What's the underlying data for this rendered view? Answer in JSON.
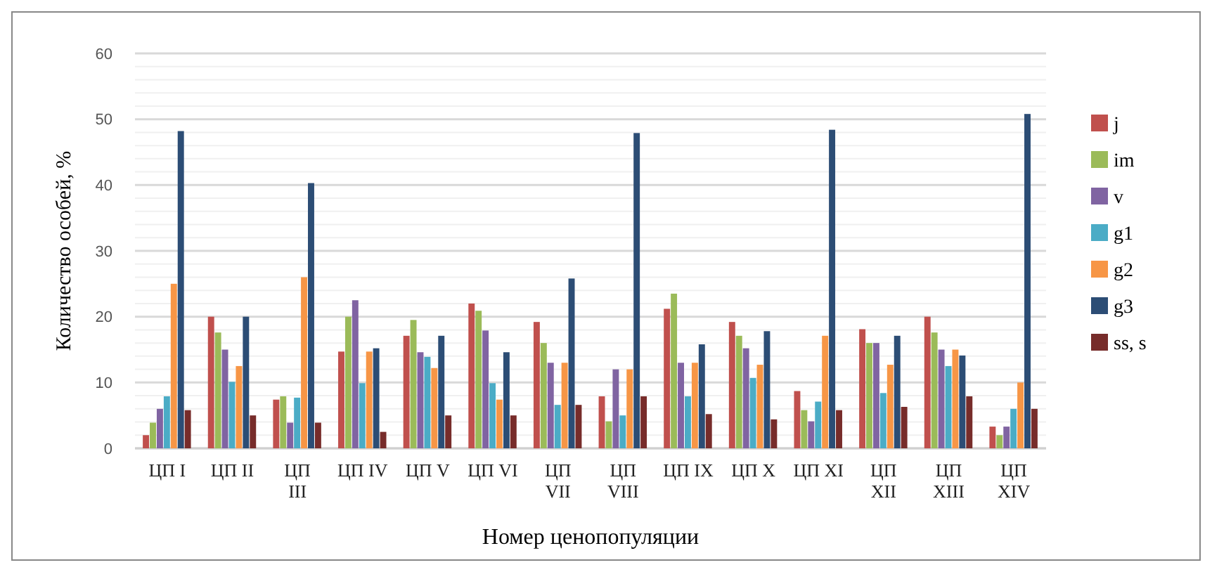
{
  "chart_data": {
    "type": "bar",
    "xlabel": "Номер ценопопуляции",
    "ylabel": "Количество особей, %",
    "categories": [
      "ЦП I",
      "ЦП II",
      "ЦП III",
      "ЦП IV",
      "ЦП V",
      "ЦП VI",
      "ЦП VII",
      "ЦП VIII",
      "ЦП IX",
      "ЦП X",
      "ЦП XI",
      "ЦП XII",
      "ЦП XIII",
      "ЦП XIV"
    ],
    "series": [
      {
        "name": "j",
        "color": "#c0504d",
        "values": [
          2.0,
          20.0,
          7.4,
          14.7,
          17.1,
          22.0,
          19.2,
          7.9,
          21.2,
          19.2,
          8.7,
          18.1,
          20.0,
          3.3
        ]
      },
      {
        "name": "im",
        "color": "#9bbb59",
        "values": [
          3.9,
          17.6,
          7.9,
          20.0,
          19.5,
          20.9,
          16.0,
          4.1,
          23.5,
          17.1,
          5.8,
          16.0,
          17.6,
          2.0
        ]
      },
      {
        "name": "v",
        "color": "#8064a2",
        "values": [
          6.0,
          15.0,
          3.9,
          22.5,
          14.6,
          17.9,
          13.0,
          12.0,
          13.0,
          15.2,
          4.1,
          16.0,
          15.0,
          3.3
        ]
      },
      {
        "name": "g1",
        "color": "#4bacc6",
        "values": [
          7.9,
          10.1,
          7.7,
          9.9,
          13.9,
          9.9,
          6.6,
          5.0,
          7.9,
          10.7,
          7.1,
          8.4,
          12.5,
          6.0
        ]
      },
      {
        "name": "g2",
        "color": "#f79646",
        "values": [
          25.0,
          12.5,
          26.0,
          14.7,
          12.2,
          7.4,
          13.0,
          12.0,
          13.0,
          12.7,
          17.1,
          12.7,
          15.0,
          10.0
        ]
      },
      {
        "name": "g3",
        "color": "#2c4d75",
        "values": [
          48.2,
          20.0,
          40.3,
          15.2,
          17.1,
          14.6,
          25.8,
          47.9,
          15.8,
          17.8,
          48.4,
          17.1,
          14.1,
          50.8
        ]
      },
      {
        "name": "ss, s",
        "color": "#772c2a",
        "values": [
          5.8,
          5.0,
          3.9,
          2.5,
          5.0,
          5.0,
          6.6,
          7.9,
          5.2,
          4.4,
          5.8,
          6.3,
          7.9,
          6.0
        ]
      }
    ],
    "ylim": [
      0,
      60
    ],
    "yticks": [
      0,
      {
        "value": 2,
        "label": null
      },
      {
        "value": 4,
        "label": null
      },
      {
        "value": 6,
        "label": null
      },
      {
        "value": 8,
        "label": null
      },
      10,
      {
        "value": 12,
        "label": null
      },
      {
        "value": 14,
        "label": null
      },
      {
        "value": 16,
        "label": null
      },
      {
        "value": 18,
        "label": null
      },
      20,
      {
        "value": 22,
        "label": null
      },
      {
        "value": 24,
        "label": null
      },
      {
        "value": 26,
        "label": null
      },
      {
        "value": 28,
        "label": null
      },
      30,
      {
        "value": 32,
        "label": null
      },
      {
        "value": 34,
        "label": null
      },
      {
        "value": 36,
        "label": null
      },
      {
        "value": 38,
        "label": null
      },
      40,
      {
        "value": 42,
        "label": null
      },
      {
        "value": 44,
        "label": null
      },
      {
        "value": 46,
        "label": null
      },
      {
        "value": 48,
        "label": null
      },
      50,
      {
        "value": 52,
        "label": null
      },
      {
        "value": 54,
        "label": null
      },
      {
        "value": 56,
        "label": null
      },
      {
        "value": 58,
        "label": null
      },
      60
    ],
    "grid": "y",
    "legend": "right"
  }
}
